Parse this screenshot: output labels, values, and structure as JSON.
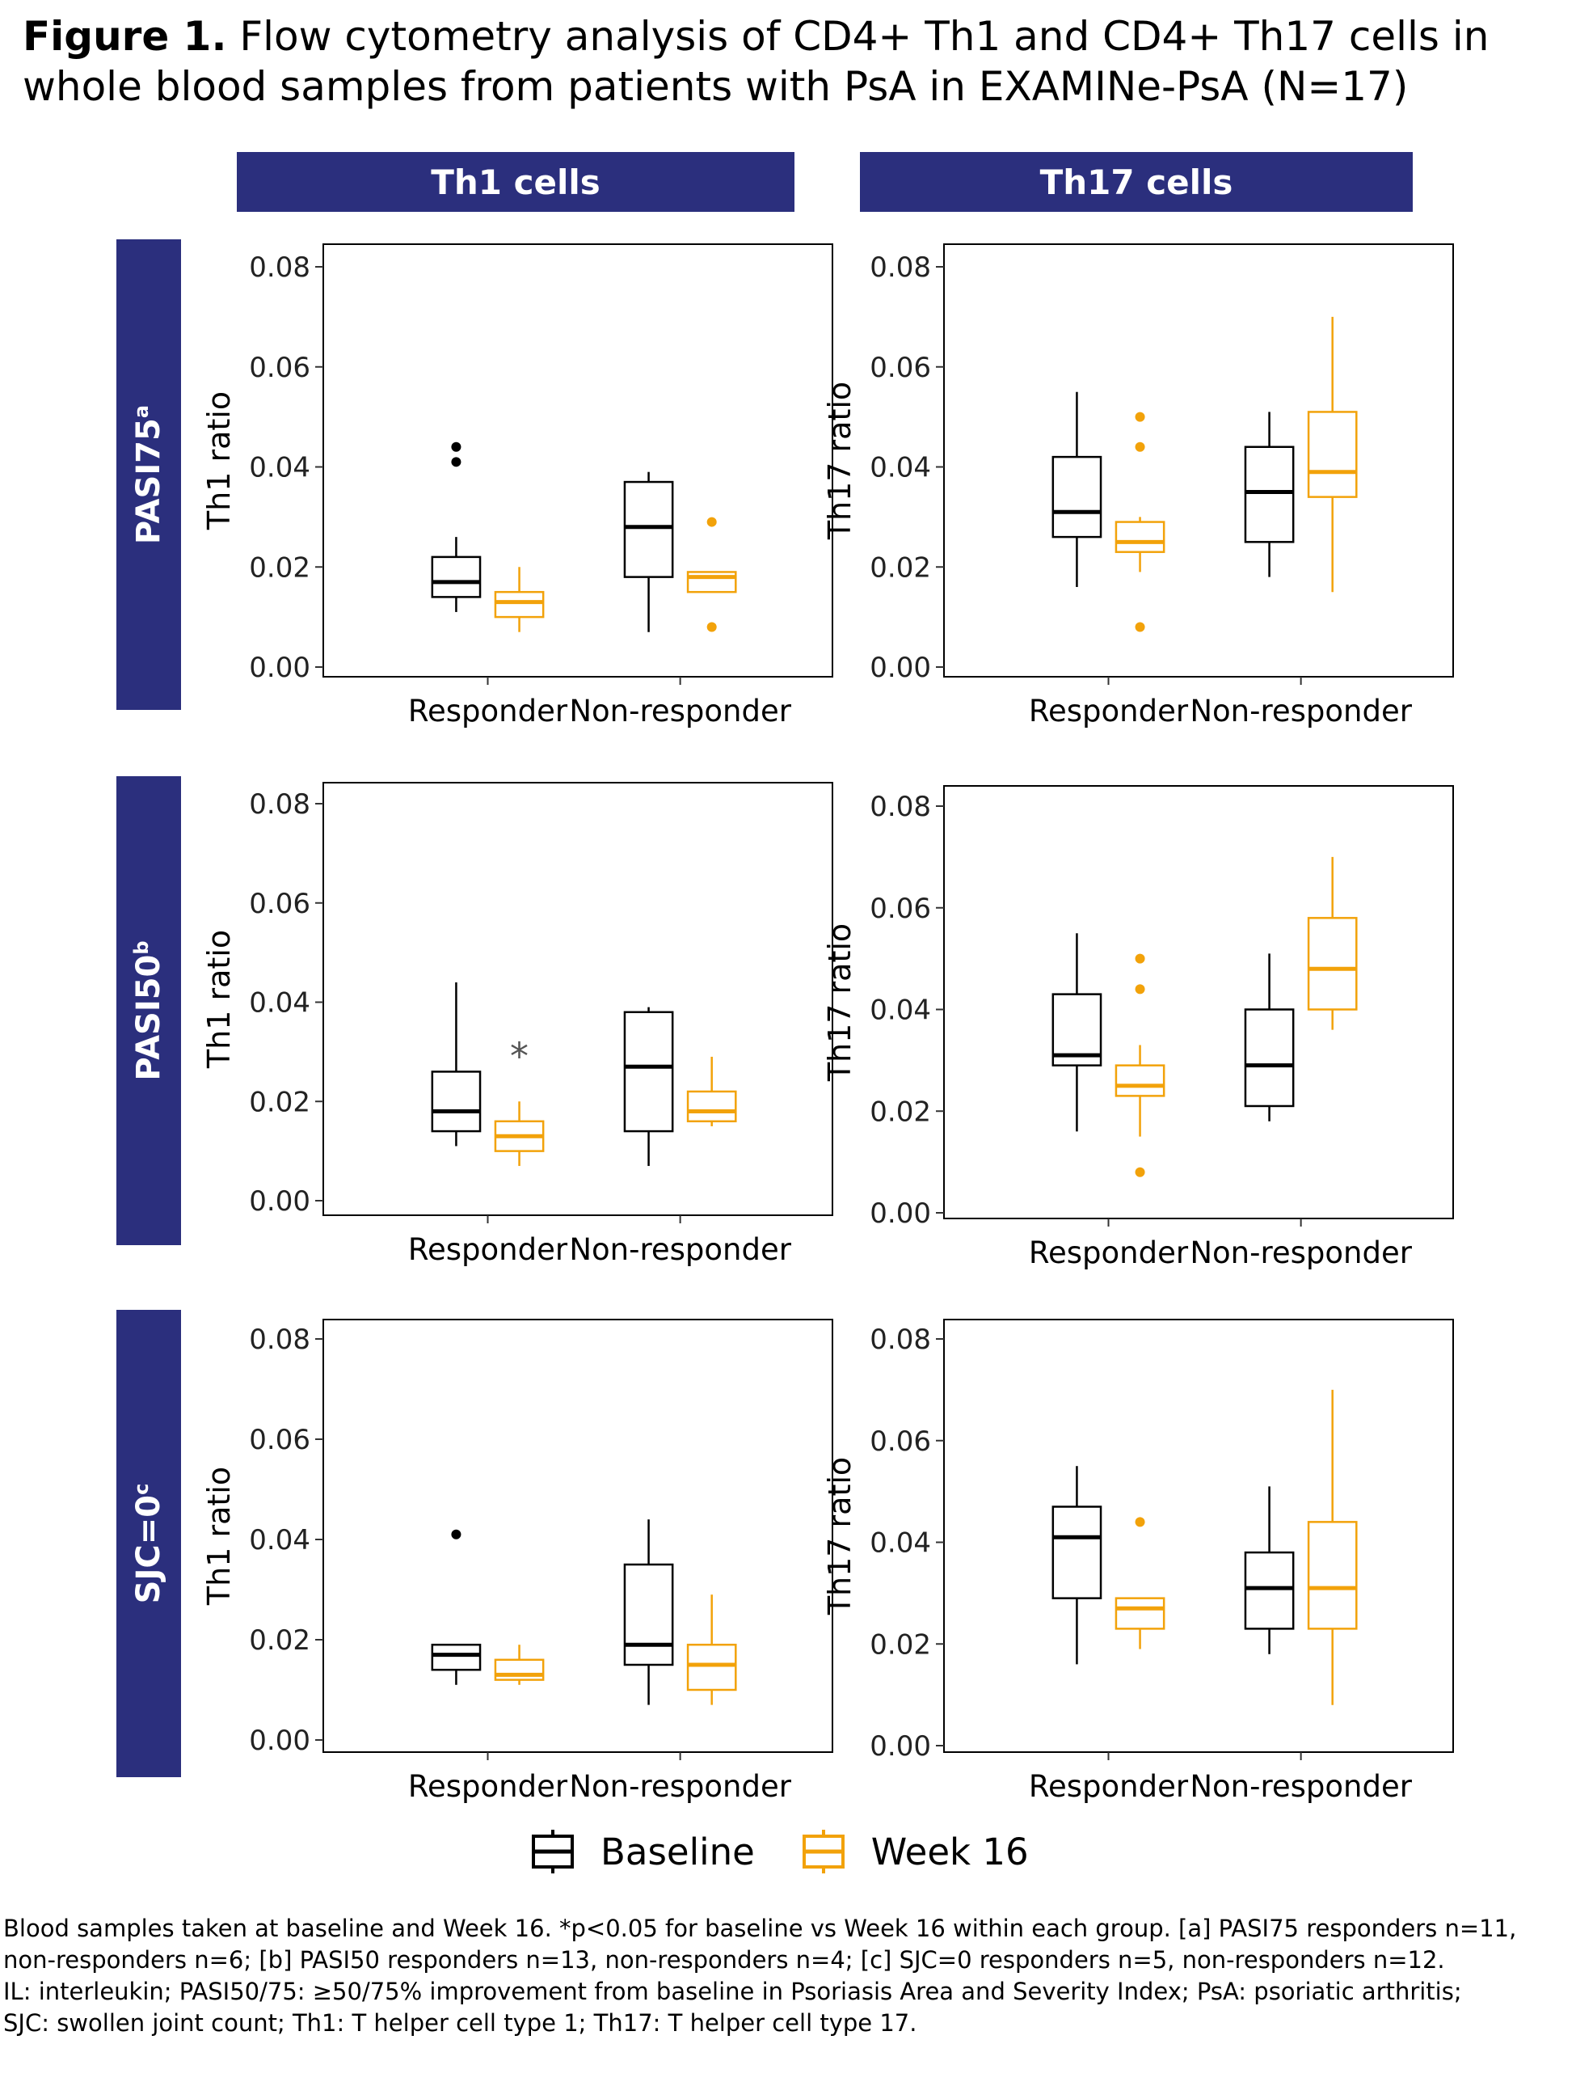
{
  "title": {
    "label": "Figure 1.",
    "text": "Flow cytometry analysis of CD4+ Th1 and CD4+ Th17 cells in whole blood samples from patients with PsA in EXAMINe-PsA (N=17)"
  },
  "columns": [
    "Th1 cells",
    "Th17 cells"
  ],
  "rows": [
    {
      "label": "PASI75",
      "sup": "a"
    },
    {
      "label": "PASI50",
      "sup": "b"
    },
    {
      "label": "SJC=0",
      "sup": "c"
    }
  ],
  "legend": [
    {
      "name": "Baseline",
      "color": "#000000"
    },
    {
      "name": "Week 16",
      "color": "#f2a20a"
    }
  ],
  "colors": {
    "header_bg": "#2b2f7d",
    "baseline": "#000000",
    "week16": "#f2a20a",
    "significance": "#555555"
  },
  "chart_data": [
    {
      "type": "box",
      "row": "PASI75",
      "column": "Th1 cells",
      "ylabel": "Th1 ratio",
      "ylim": [
        0,
        0.08
      ],
      "yticks": [
        "0.00",
        "0.02",
        "0.04",
        "0.06",
        "0.08"
      ],
      "categories": [
        "Responder",
        "Non-responder"
      ],
      "series": [
        {
          "name": "Baseline",
          "boxes": [
            {
              "whisker_low": 0.011,
              "q1": 0.014,
              "median": 0.017,
              "q3": 0.022,
              "whisker_high": 0.026,
              "outliers": [
                0.041,
                0.044
              ]
            },
            {
              "whisker_low": 0.007,
              "q1": 0.018,
              "median": 0.028,
              "q3": 0.037,
              "whisker_high": 0.039,
              "outliers": []
            }
          ]
        },
        {
          "name": "Week 16",
          "boxes": [
            {
              "whisker_low": 0.007,
              "q1": 0.01,
              "median": 0.013,
              "q3": 0.015,
              "whisker_high": 0.02,
              "outliers": []
            },
            {
              "whisker_low": 0.015,
              "q1": 0.015,
              "median": 0.018,
              "q3": 0.019,
              "whisker_high": 0.019,
              "outliers": [
                0.008,
                0.029
              ]
            }
          ]
        }
      ],
      "annotations": []
    },
    {
      "type": "box",
      "row": "PASI75",
      "column": "Th17 cells",
      "ylabel": "Th17 ratio",
      "ylim": [
        0,
        0.08
      ],
      "yticks": [
        "0.00",
        "0.02",
        "0.04",
        "0.06",
        "0.08"
      ],
      "categories": [
        "Responder",
        "Non-responder"
      ],
      "series": [
        {
          "name": "Baseline",
          "boxes": [
            {
              "whisker_low": 0.016,
              "q1": 0.026,
              "median": 0.031,
              "q3": 0.042,
              "whisker_high": 0.055,
              "outliers": []
            },
            {
              "whisker_low": 0.018,
              "q1": 0.025,
              "median": 0.035,
              "q3": 0.044,
              "whisker_high": 0.051,
              "outliers": []
            }
          ]
        },
        {
          "name": "Week 16",
          "boxes": [
            {
              "whisker_low": 0.019,
              "q1": 0.023,
              "median": 0.025,
              "q3": 0.029,
              "whisker_high": 0.03,
              "outliers": [
                0.008,
                0.044,
                0.05
              ]
            },
            {
              "whisker_low": 0.015,
              "q1": 0.034,
              "median": 0.039,
              "q3": 0.051,
              "whisker_high": 0.07,
              "outliers": []
            }
          ]
        }
      ],
      "annotations": []
    },
    {
      "type": "box",
      "row": "PASI50",
      "column": "Th1 cells",
      "ylabel": "Th1 ratio",
      "ylim": [
        0,
        0.08
      ],
      "yticks": [
        "0.00",
        "0.02",
        "0.04",
        "0.06",
        "0.08"
      ],
      "categories": [
        "Responder",
        "Non-responder"
      ],
      "series": [
        {
          "name": "Baseline",
          "boxes": [
            {
              "whisker_low": 0.011,
              "q1": 0.014,
              "median": 0.018,
              "q3": 0.026,
              "whisker_high": 0.044,
              "outliers": []
            },
            {
              "whisker_low": 0.007,
              "q1": 0.014,
              "median": 0.027,
              "q3": 0.038,
              "whisker_high": 0.039,
              "outliers": []
            }
          ]
        },
        {
          "name": "Week 16",
          "boxes": [
            {
              "whisker_low": 0.007,
              "q1": 0.01,
              "median": 0.013,
              "q3": 0.016,
              "whisker_high": 0.02,
              "outliers": []
            },
            {
              "whisker_low": 0.015,
              "q1": 0.016,
              "median": 0.018,
              "q3": 0.022,
              "whisker_high": 0.029,
              "outliers": []
            }
          ]
        }
      ],
      "annotations": [
        {
          "text": "*",
          "category": 0,
          "y": 0.031
        }
      ]
    },
    {
      "type": "box",
      "row": "PASI50",
      "column": "Th17 cells",
      "ylabel": "Th17 ratio",
      "ylim": [
        0,
        0.08
      ],
      "yticks": [
        "0.00",
        "0.02",
        "0.04",
        "0.06",
        "0.08"
      ],
      "categories": [
        "Responder",
        "Non-responder"
      ],
      "series": [
        {
          "name": "Baseline",
          "boxes": [
            {
              "whisker_low": 0.016,
              "q1": 0.029,
              "median": 0.031,
              "q3": 0.043,
              "whisker_high": 0.055,
              "outliers": []
            },
            {
              "whisker_low": 0.018,
              "q1": 0.021,
              "median": 0.029,
              "q3": 0.04,
              "whisker_high": 0.051,
              "outliers": []
            }
          ]
        },
        {
          "name": "Week 16",
          "boxes": [
            {
              "whisker_low": 0.015,
              "q1": 0.023,
              "median": 0.025,
              "q3": 0.029,
              "whisker_high": 0.033,
              "outliers": [
                0.008,
                0.044,
                0.05
              ]
            },
            {
              "whisker_low": 0.036,
              "q1": 0.04,
              "median": 0.048,
              "q3": 0.058,
              "whisker_high": 0.07,
              "outliers": []
            }
          ]
        }
      ],
      "annotations": []
    },
    {
      "type": "box",
      "row": "SJC=0",
      "column": "Th1 cells",
      "ylabel": "Th1 ratio",
      "ylim": [
        0,
        0.08
      ],
      "yticks": [
        "0.00",
        "0.02",
        "0.04",
        "0.06",
        "0.08"
      ],
      "categories": [
        "Responder",
        "Non-responder"
      ],
      "series": [
        {
          "name": "Baseline",
          "boxes": [
            {
              "whisker_low": 0.011,
              "q1": 0.014,
              "median": 0.017,
              "q3": 0.019,
              "whisker_high": 0.019,
              "outliers": [
                0.041
              ]
            },
            {
              "whisker_low": 0.007,
              "q1": 0.015,
              "median": 0.019,
              "q3": 0.035,
              "whisker_high": 0.044,
              "outliers": []
            }
          ]
        },
        {
          "name": "Week 16",
          "boxes": [
            {
              "whisker_low": 0.011,
              "q1": 0.012,
              "median": 0.013,
              "q3": 0.016,
              "whisker_high": 0.019,
              "outliers": []
            },
            {
              "whisker_low": 0.007,
              "q1": 0.01,
              "median": 0.015,
              "q3": 0.019,
              "whisker_high": 0.029,
              "outliers": []
            }
          ]
        }
      ],
      "annotations": []
    },
    {
      "type": "box",
      "row": "SJC=0",
      "column": "Th17 cells",
      "ylabel": "Th17 ratio",
      "ylim": [
        0,
        0.08
      ],
      "yticks": [
        "0.00",
        "0.02",
        "0.04",
        "0.06",
        "0.08"
      ],
      "categories": [
        "Responder",
        "Non-responder"
      ],
      "series": [
        {
          "name": "Baseline",
          "boxes": [
            {
              "whisker_low": 0.016,
              "q1": 0.029,
              "median": 0.041,
              "q3": 0.047,
              "whisker_high": 0.055,
              "outliers": []
            },
            {
              "whisker_low": 0.018,
              "q1": 0.023,
              "median": 0.031,
              "q3": 0.038,
              "whisker_high": 0.051,
              "outliers": []
            }
          ]
        },
        {
          "name": "Week 16",
          "boxes": [
            {
              "whisker_low": 0.019,
              "q1": 0.023,
              "median": 0.027,
              "q3": 0.029,
              "whisker_high": 0.029,
              "outliers": [
                0.044
              ]
            },
            {
              "whisker_low": 0.008,
              "q1": 0.023,
              "median": 0.031,
              "q3": 0.044,
              "whisker_high": 0.07,
              "outliers": []
            }
          ]
        }
      ],
      "annotations": []
    }
  ],
  "footnote": [
    "Blood samples taken at baseline and Week 16.  *p<0.05 for baseline vs Week 16 within each group. [a]  PASI75 responders n=11,",
    "non-responders n=6; [b] PASI50 responders n=13, non-responders n=4; [c] SJC=0 responders n=5, non-responders n=12.",
    "IL: interleukin; PASI50/75: ≥50/75% improvement from baseline in Psoriasis Area and Severity Index; PsA:  psoriatic arthritis;",
    "SJC: swollen joint count; Th1: T helper cell type 1; Th17: T helper cell type 17."
  ]
}
